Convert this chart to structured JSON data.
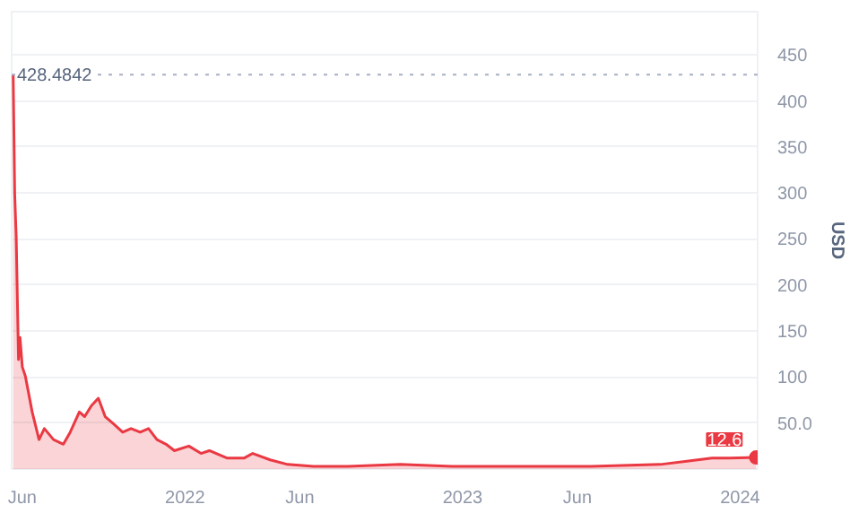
{
  "chart_data": {
    "type": "area",
    "ylabel": "USD",
    "x": [
      "2021-05-20",
      "2021-05-22",
      "2021-05-24",
      "2021-05-27",
      "2021-05-29",
      "2021-06-01",
      "2021-06-05",
      "2021-06-14",
      "2021-06-23",
      "2021-06-30",
      "2021-07-12",
      "2021-07-25",
      "2021-08-03",
      "2021-08-15",
      "2021-08-22",
      "2021-08-31",
      "2021-09-09",
      "2021-09-18",
      "2021-09-29",
      "2021-10-11",
      "2021-10-22",
      "2021-11-03",
      "2021-11-14",
      "2021-11-25",
      "2021-12-07",
      "2021-12-18",
      "2022-01-06",
      "2022-01-22",
      "2022-02-02",
      "2022-02-25",
      "2022-03-20",
      "2022-03-31",
      "2022-04-23",
      "2022-05-16",
      "2022-06-19",
      "2022-08-03",
      "2022-10-11",
      "2022-12-18",
      "2023-03-20",
      "2023-06-19",
      "2023-09-18",
      "2023-11-25",
      "2023-12-18",
      "2024-01-22"
    ],
    "series": [
      {
        "color": "#ea3943",
        "values": [
          428.5,
          299,
          252,
          119,
          143,
          111,
          101,
          62,
          32,
          44,
          32,
          27,
          40,
          62,
          57,
          69,
          77,
          57,
          49,
          40,
          44,
          40,
          44,
          32,
          27,
          20,
          25,
          17,
          20,
          12,
          12,
          17,
          10,
          5,
          3,
          3,
          5,
          3,
          3,
          3,
          5,
          12,
          12,
          12.6
        ]
      }
    ],
    "xlim": [
      "2021-05-18",
      "2024-01-24"
    ],
    "xticks": [
      {
        "value": "2021-06-01",
        "label": "Jun"
      },
      {
        "value": "2022-01-01",
        "label": "2022"
      },
      {
        "value": "2022-06-01",
        "label": "Jun"
      },
      {
        "value": "2023-01-01",
        "label": "2023"
      },
      {
        "value": "2023-06-01",
        "label": "Jun"
      },
      {
        "value": "2024-01-01",
        "label": "2024"
      }
    ],
    "ylim": [
      0,
      497
    ],
    "yticks": [
      {
        "value": 50,
        "label": "50.0"
      },
      100,
      150,
      200,
      250,
      300,
      350,
      400,
      450
    ],
    "ref_lines": [
      {
        "axis": "y",
        "value": 428.4842,
        "label": "428.4842",
        "color": "#a6b0c3",
        "line_style": "dotted"
      }
    ],
    "annotations": [
      {
        "text": "12.6",
        "x": "2024-01-22",
        "y": 12.6
      }
    ],
    "grid": "y"
  }
}
